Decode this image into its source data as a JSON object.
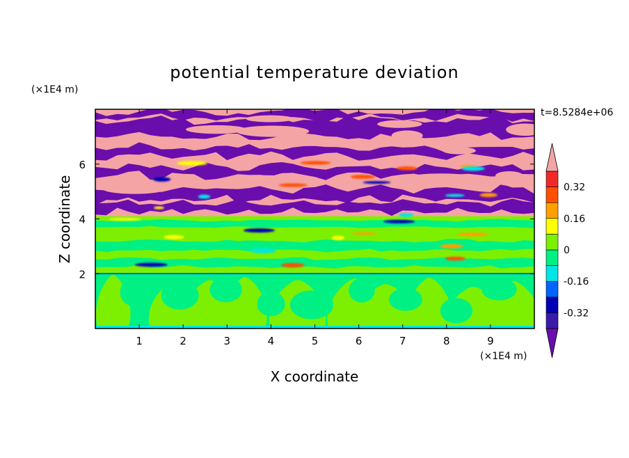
{
  "chart_data": {
    "type": "heatmap",
    "title": "potential temperature deviation",
    "xlabel": "X coordinate",
    "ylabel": "Z coordinate",
    "x_unit": "(×1E4 m)",
    "y_unit": "(×1E4 m)",
    "time_label": "t=8.5284e+06",
    "xlim": [
      0,
      10
    ],
    "ylim": [
      0,
      8
    ],
    "x_ticks": [
      1,
      2,
      3,
      4,
      5,
      6,
      7,
      8,
      9
    ],
    "y_ticks": [
      2,
      4,
      6
    ],
    "colorbar": {
      "levels": [
        -0.4,
        -0.32,
        -0.24,
        -0.16,
        -0.08,
        0,
        0.08,
        0.16,
        0.24,
        0.32,
        0.4
      ],
      "labels": [
        "0.32",
        "0.16",
        "0",
        "-0.16",
        "-0.32"
      ],
      "label_values": [
        0.32,
        0.16,
        0,
        -0.16,
        -0.32
      ],
      "colors": [
        "#6a0dad",
        "#3a1aa8",
        "#0000b4",
        "#0064ff",
        "#00e6e6",
        "#00f084",
        "#7cf000",
        "#ffff00",
        "#ffa000",
        "#ff5000",
        "#f02828",
        "#f4a4a4"
      ],
      "below_color": "#6a0dad",
      "above_color": "#f4a4a4",
      "extend": "both"
    },
    "bands": [
      {
        "z_range": [
          0.0,
          2.0
        ],
        "description_value": "mix",
        "colors": [
          "#00f084",
          "#7cf000",
          "#00e6e6"
        ]
      },
      {
        "z_range": [
          2.0,
          2.4
        ],
        "colors": [
          "#7cf000",
          "#00f084"
        ]
      },
      {
        "z_range": [
          2.4,
          3.2
        ],
        "colors": [
          "#00f084",
          "#7cf000"
        ]
      },
      {
        "z_range": [
          3.2,
          4.1
        ],
        "colors": [
          "#7cf000",
          "#00f084"
        ]
      },
      {
        "z_range": [
          4.1,
          5.2
        ],
        "colors": [
          "#6a0dad",
          "#f4a4a4"
        ]
      },
      {
        "z_range": [
          5.2,
          8.0
        ],
        "colors": [
          "#f4a4a4",
          "#6a0dad"
        ]
      }
    ]
  }
}
